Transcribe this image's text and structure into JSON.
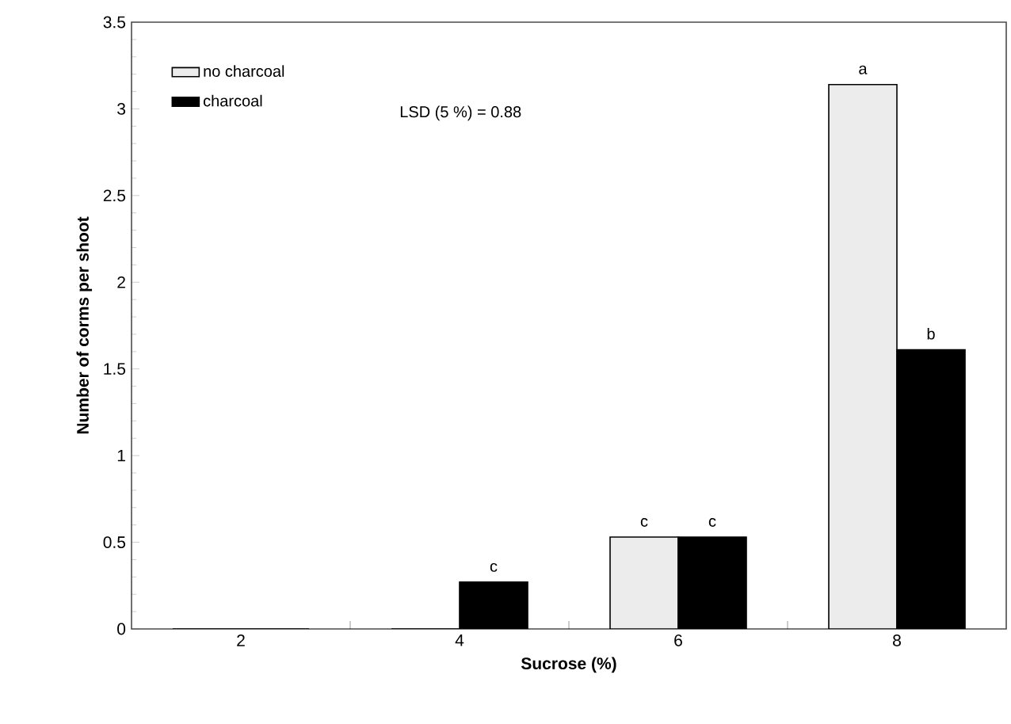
{
  "chart_data": {
    "type": "bar",
    "xlabel": "Sucrose (%)",
    "ylabel": "Number of corms per shoot",
    "categories": [
      "2",
      "4",
      "6",
      "8"
    ],
    "series": [
      {
        "name": "no charcoal",
        "color": "#ececec",
        "values": [
          0,
          0,
          0.53,
          3.14
        ]
      },
      {
        "name": "charcoal",
        "color": "#000000",
        "values": [
          0,
          0.27,
          0.53,
          1.61
        ]
      }
    ],
    "ylim": [
      0,
      3.5
    ],
    "yticks": [
      0,
      0.5,
      1,
      1.5,
      2,
      2.5,
      3,
      3.5
    ],
    "legend": "top left",
    "annotations": [
      "LSD (5 %) = 0.88",
      {
        "text": "c",
        "x": "4",
        "y": 0.27
      },
      {
        "text": "c",
        "x": "6",
        "y": 0.53
      },
      {
        "text": "c",
        "x": "6",
        "y": 0.53
      },
      {
        "text": "a",
        "x": "8",
        "y": 3.14
      },
      {
        "text": "b",
        "x": "8",
        "y": 1.61
      }
    ]
  }
}
